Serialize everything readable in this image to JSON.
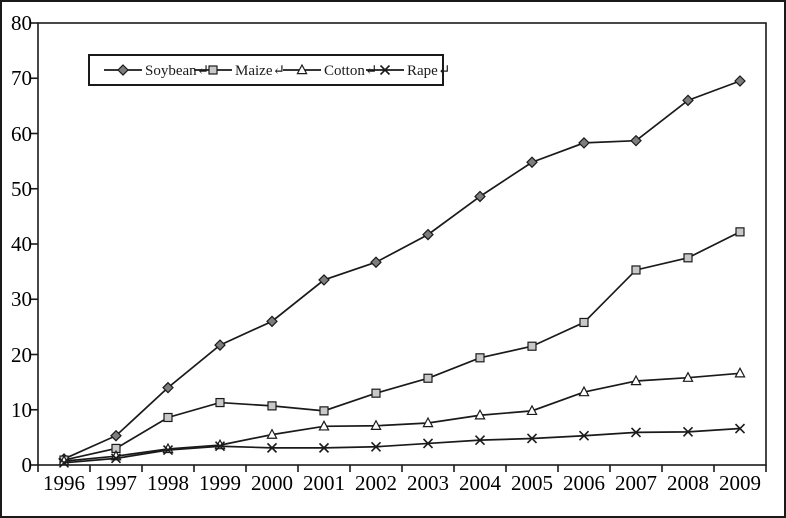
{
  "figure": {
    "background": "#ffffff",
    "border_color": "#1a1a1a"
  },
  "chart_data": {
    "type": "line",
    "title": "",
    "xlabel": "",
    "ylabel": "",
    "categories": [
      "1996",
      "1997",
      "1998",
      "1999",
      "2000",
      "2001",
      "2002",
      "2003",
      "2004",
      "2005",
      "2006",
      "2007",
      "2008",
      "2009"
    ],
    "series": [
      {
        "name": "Soybean↵",
        "marker": "diamond",
        "values": [
          1.1,
          5.3,
          14.0,
          21.7,
          26.0,
          33.5,
          36.7,
          41.7,
          48.6,
          54.8,
          58.3,
          58.7,
          66.0,
          69.5
        ]
      },
      {
        "name": "Maize↵",
        "marker": "square",
        "values": [
          0.9,
          3.0,
          8.6,
          11.3,
          10.7,
          9.8,
          13.0,
          15.7,
          19.4,
          21.5,
          25.8,
          35.3,
          37.5,
          42.2
        ]
      },
      {
        "name": "Cotton↵",
        "marker": "triangle",
        "values": [
          0.7,
          1.6,
          2.9,
          3.6,
          5.5,
          7.0,
          7.1,
          7.6,
          9.0,
          9.8,
          13.2,
          15.2,
          15.8,
          16.6
        ]
      },
      {
        "name": "Rape↵",
        "marker": "x",
        "values": [
          0.4,
          1.2,
          2.7,
          3.4,
          3.1,
          3.1,
          3.3,
          3.9,
          4.5,
          4.8,
          5.3,
          5.9,
          6.0,
          6.6
        ]
      }
    ],
    "ylim": [
      0,
      80
    ],
    "y_ticks": [
      0,
      10,
      20,
      30,
      40,
      50,
      60,
      70,
      80
    ],
    "grid": false,
    "legend_position": "top-left-inside",
    "colors": {
      "line": "#1a1a1a",
      "axis": "#1a1a1a",
      "diamond_fill": "#7d7d7d",
      "square_fill": "#c8c8c8",
      "triangle_fill": "#ffffff",
      "background": "#ffffff"
    }
  }
}
